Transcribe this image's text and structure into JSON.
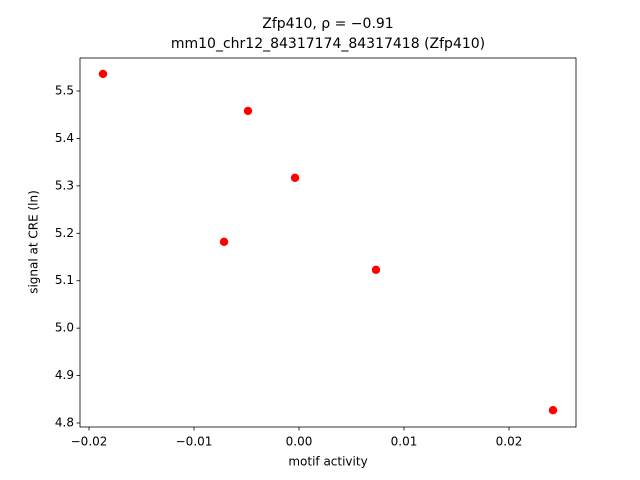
{
  "chart_data": {
    "type": "scatter",
    "title": "Zfp410, ρ = −0.91",
    "subtitle": "mm10_chr12_84317174_84317418 (Zfp410)",
    "x_label": "motif activity",
    "y_label": "signal at CRE (ln)",
    "color": "#ff0000",
    "x": [
      -0.01867,
      -0.00486,
      -0.00038,
      -0.00714,
      0.00733,
      0.02419
    ],
    "values": [
      5.536,
      5.458,
      5.317,
      5.182,
      5.123,
      4.827
    ],
    "xlim": [
      -0.02086,
      0.02638
    ],
    "ylim": [
      4.7916,
      5.5696
    ],
    "xticks": [
      {
        "value": -0.02,
        "label": "−0.02"
      },
      {
        "value": -0.01,
        "label": "−0.01"
      },
      {
        "value": 0,
        "label": "0.00"
      },
      0.01,
      0.02
    ],
    "yticks": [
      4.8,
      4.9,
      {
        "value": 5.0,
        "label": "5.0"
      },
      5.1,
      5.2,
      5.3,
      5.4,
      5.5
    ]
  }
}
